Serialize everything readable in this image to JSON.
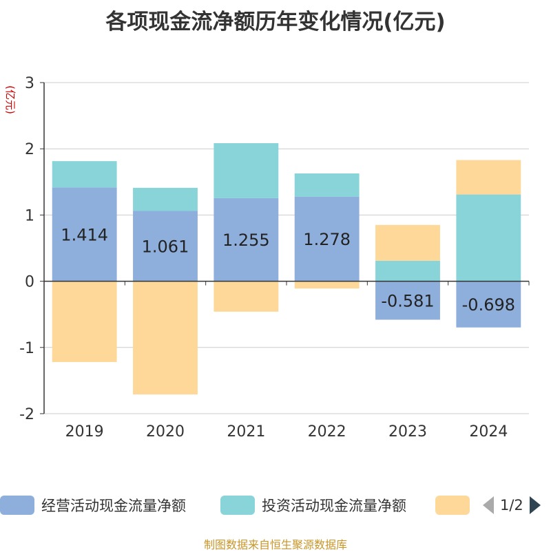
{
  "title": "各项现金流净额历年变化情况(亿元)",
  "source": "制图数据来自恒生聚源数据库",
  "colors": {
    "operating": "#8eaedc",
    "investing": "#88d4d8",
    "financing": "#fdd898",
    "axis": "#333333",
    "grid": "#cccccc",
    "unit": "#cc0000"
  },
  "legend": {
    "items": [
      {
        "label": "经营活动现金流量净额",
        "color": "#8eaedc"
      },
      {
        "label": "投资活动现金流量净额",
        "color": "#88d4d8"
      },
      {
        "label": "",
        "color": "#fdd898"
      }
    ],
    "page_text": "1/2",
    "prev_icon": "triangle-left-icon",
    "next_icon": "triangle-right-icon"
  },
  "chart_data": {
    "type": "bar",
    "stacked": true,
    "title": "各项现金流净额历年变化情况(亿元)",
    "ylabel": "(亿元)",
    "xlabel": "",
    "ylim": [
      -2,
      3
    ],
    "yticks": [
      -2,
      -1,
      0,
      1,
      2,
      3
    ],
    "ytick_labels": [
      "-2",
      "-1",
      "0",
      "1",
      "2",
      "3"
    ],
    "categories": [
      "2019",
      "2020",
      "2021",
      "2022",
      "2023",
      "2024"
    ],
    "series": [
      {
        "name": "经营活动现金流量净额",
        "color": "#8eaedc",
        "values": [
          1.414,
          1.061,
          1.255,
          1.278,
          -0.581,
          -0.698
        ],
        "labels": [
          "1.414",
          "1.061",
          "1.255",
          "1.278",
          "-0.581",
          "-0.698"
        ]
      },
      {
        "name": "投资活动现金流量净额",
        "color": "#88d4d8",
        "values": [
          0.4,
          0.35,
          0.83,
          0.35,
          0.31,
          1.31
        ]
      },
      {
        "name": "",
        "color": "#fdd898",
        "values": [
          -1.22,
          -1.71,
          -0.46,
          -0.11,
          0.54,
          0.52
        ]
      }
    ]
  }
}
